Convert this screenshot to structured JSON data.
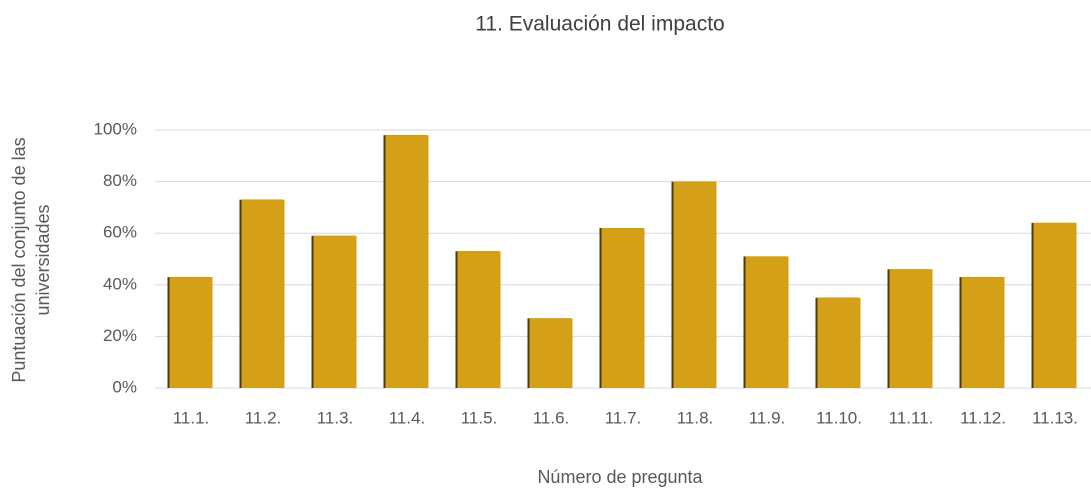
{
  "chart_data": {
    "type": "bar",
    "title": "11. Evaluación del impacto",
    "x_label": "Número de pregunta",
    "y_label": [
      "Puntuación del conjunto de las",
      "universidades"
    ],
    "categories": [
      "11.1.",
      "11.2.",
      "11.3.",
      "11.4.",
      "11.5.",
      "11.6.",
      "11.7.",
      "11.8.",
      "11.9.",
      "11.10.",
      "11.11.",
      "11.12.",
      "11.13."
    ],
    "values": [
      43,
      73,
      59,
      98,
      53,
      27,
      62,
      80,
      51,
      35,
      46,
      43,
      64
    ],
    "color": "#d4a017",
    "ylim": [
      0,
      100
    ],
    "yticks": [
      {
        "value": 0,
        "label": "0%"
      },
      {
        "value": 20,
        "label": "20%"
      },
      {
        "value": 40,
        "label": "40%"
      },
      {
        "value": 60,
        "label": "60%"
      },
      {
        "value": 80,
        "label": "80%"
      },
      {
        "value": 100,
        "label": "100%"
      }
    ],
    "grid": true
  }
}
